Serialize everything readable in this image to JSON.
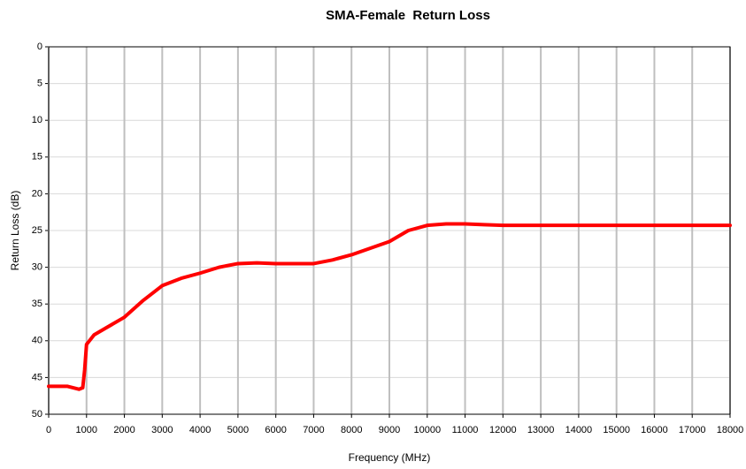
{
  "chart_data": {
    "type": "line",
    "title": "SMA-Female  Return Loss",
    "x_label": "Frequency (MHz)",
    "y_label": "Return Loss (dB)",
    "x": [
      0,
      500,
      800,
      900,
      950,
      1000,
      1200,
      1500,
      2000,
      2500,
      3000,
      3500,
      4000,
      4500,
      5000,
      5500,
      6000,
      6500,
      7000,
      7500,
      8000,
      8500,
      9000,
      9500,
      10000,
      10500,
      11000,
      11500,
      12000,
      13000,
      14000,
      15000,
      16000,
      17000,
      18000
    ],
    "values": [
      46.2,
      46.2,
      46.6,
      46.4,
      44,
      40.5,
      39.2,
      38.3,
      36.8,
      34.5,
      32.5,
      31.5,
      30.8,
      30,
      29.5,
      29.4,
      29.5,
      29.5,
      29.5,
      29,
      28.3,
      27.4,
      26.5,
      25,
      24.3,
      24.1,
      24.1,
      24.2,
      24.3,
      24.3,
      24.3,
      24.3,
      24.3,
      24.3,
      24.3
    ],
    "color": "#ff0000",
    "xlim": [
      0,
      18000
    ],
    "xticks": [
      0,
      1000,
      2000,
      3000,
      4000,
      5000,
      6000,
      7000,
      8000,
      9000,
      10000,
      11000,
      12000,
      13000,
      14000,
      15000,
      16000,
      17000,
      18000
    ],
    "ylim": [
      0,
      50
    ],
    "yticks": [
      0,
      5,
      10,
      15,
      20,
      25,
      30,
      35,
      40,
      45,
      50
    ],
    "y_inverted": true,
    "grid": true
  }
}
